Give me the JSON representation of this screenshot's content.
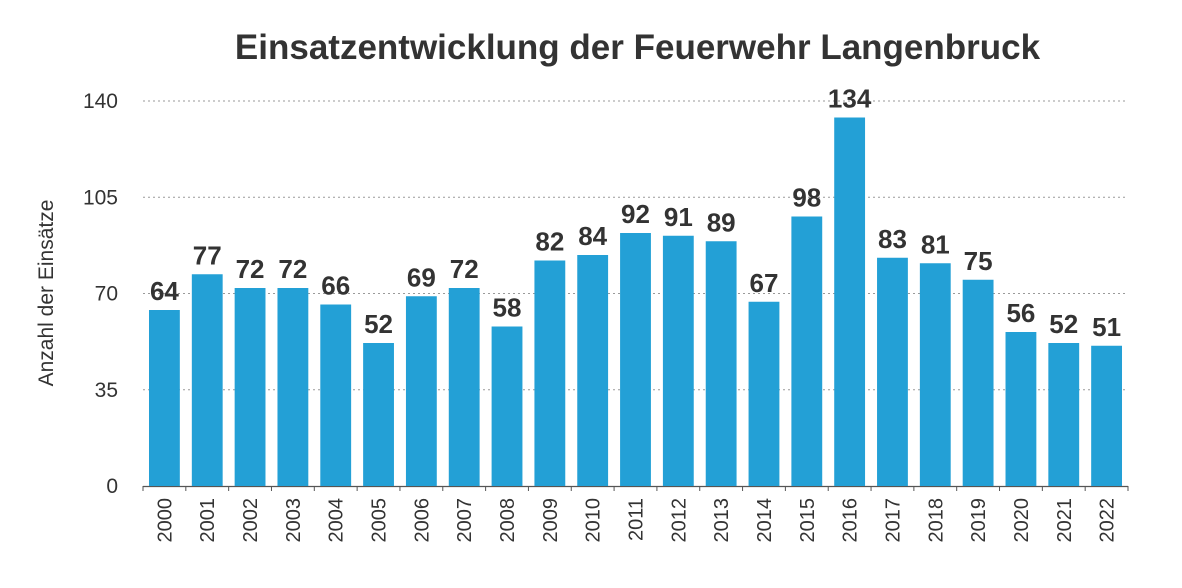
{
  "chart_data": {
    "type": "bar",
    "title": "Einsatzentwicklung der Feuerwehr Langenbruck",
    "xlabel": "",
    "ylabel": "Anzahl der Einsätze",
    "categories": [
      "2000",
      "2001",
      "2002",
      "2003",
      "2004",
      "2005",
      "2006",
      "2007",
      "2008",
      "2009",
      "2010",
      "2011",
      "2012",
      "2013",
      "2014",
      "2015",
      "2016",
      "2017",
      "2018",
      "2019",
      "2020",
      "2021",
      "2022"
    ],
    "values": [
      64,
      77,
      72,
      72,
      66,
      52,
      69,
      72,
      58,
      82,
      84,
      92,
      91,
      89,
      67,
      98,
      134,
      83,
      81,
      75,
      56,
      52,
      51
    ],
    "yticks": [
      0,
      35,
      70,
      105,
      140
    ],
    "ylim": [
      0,
      140
    ],
    "grid": true,
    "gridline_style": "dotted",
    "data_labels": true,
    "bar_color": "#23a0d6",
    "text_color": "#333333"
  }
}
